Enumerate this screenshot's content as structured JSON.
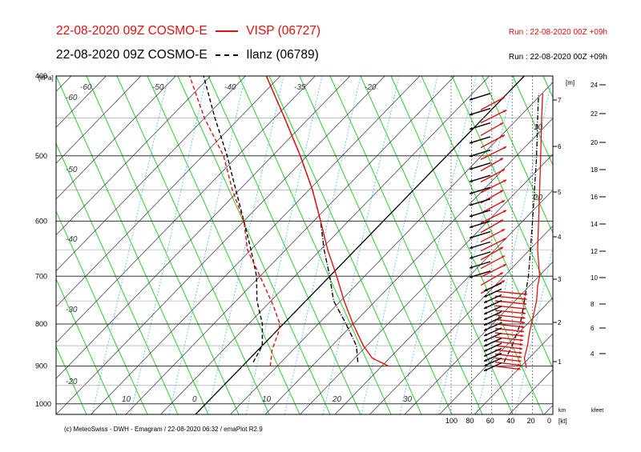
{
  "header": {
    "title1": "22-08-2020 09Z COSMO-E",
    "series1_label": "VISP (06727)",
    "title2": "22-08-2020 09Z COSMO-E",
    "series2_label": "Ilanz (06789)",
    "run1": "Run : 22-08-2020 00Z +09h",
    "run2": "Run : 22-08-2020 00Z +09h"
  },
  "footer": "(c) MeteoSwiss - DWH - Emagram / 22-08-2020 06:32 / emaPlot R2.9",
  "colors": {
    "visp": "#e01010",
    "ilanz": "#000000",
    "dry_adiabat": "#2ecc2e",
    "mixing_ratio": "#66c8ff",
    "isotherm": "#333333",
    "isobar": "#555555"
  },
  "chart_data": {
    "type": "line",
    "subtype": "emagram (skew-T log-P)",
    "pressure_axis": {
      "label": "[hPa]",
      "scale": "log",
      "ticks": [
        400,
        500,
        600,
        700,
        800,
        900,
        1000
      ],
      "range": [
        1030,
        400
      ]
    },
    "temperature_axis": {
      "ticks": [
        "-60",
        "-50",
        "-40",
        "-30",
        "-20",
        "-10",
        "0",
        "10",
        "20",
        "30"
      ],
      "top_labels": [
        "-60",
        "-50",
        "-40",
        "-35",
        "-20"
      ],
      "left_labels": [
        "-60",
        "-50",
        "-40",
        "-30",
        "-20"
      ],
      "bottom_labels": [
        "10",
        "0",
        "10",
        "20",
        "30"
      ]
    },
    "height_m_axis": {
      "label": "[m]",
      "ticks": [
        "1",
        "2",
        "3",
        "4",
        "5",
        "6",
        "7"
      ],
      "bottom_label": "km"
    },
    "height_kfeet_axis": {
      "ticks": [
        "4",
        "6",
        "8",
        "10",
        "12",
        "14",
        "16",
        "18",
        "20",
        "22",
        "24"
      ],
      "bottom_label": "kfeet"
    },
    "wind_axis": {
      "label": "[kt]",
      "ticks": [
        "100",
        "80",
        "60",
        "40",
        "20",
        "0"
      ]
    },
    "inner_labels": [
      "10",
      "20"
    ],
    "series": [
      {
        "name": "VISP (06727)",
        "temperature": {
          "pressure": [
            900,
            880,
            850,
            800,
            750,
            700,
            650,
            600,
            550,
            500,
            450,
            400
          ],
          "temp_c": [
            21,
            17.5,
            14.5,
            10,
            5.5,
            1,
            -4,
            -9,
            -14.5,
            -21,
            -28.5,
            -37
          ]
        },
        "dewpoint": {
          "pressure": [
            900,
            860,
            820,
            800,
            760,
            700,
            650,
            600,
            550,
            500,
            450,
            400
          ],
          "temp_c": [
            4,
            2,
            0.5,
            -0.5,
            -4,
            -10,
            -15.5,
            -20,
            -26,
            -32,
            -40,
            -48
          ]
        },
        "wind_speed_kt": {
          "pressure": [
            905,
            880,
            850,
            820,
            800,
            770,
            750,
            720,
            700,
            650,
            600,
            550,
            500,
            450,
            420
          ],
          "speed": [
            26,
            28,
            25,
            23,
            21,
            18,
            16,
            15,
            13,
            15,
            14,
            13,
            12,
            11,
            10
          ]
        }
      },
      {
        "name": "Ilanz (06789)",
        "temperature": {
          "pressure": [
            890,
            850,
            800,
            750,
            700,
            650,
            600,
            550,
            500,
            450,
            400
          ],
          "temp_c": [
            16,
            13.5,
            9,
            4,
            0,
            -4.5,
            -9,
            -14.5,
            -21,
            -28.5,
            -37
          ]
        },
        "dewpoint": {
          "pressure": [
            890,
            850,
            800,
            750,
            700,
            650,
            600,
            550,
            500,
            450,
            400
          ],
          "temp_c": [
            1,
            0,
            -3,
            -7,
            -10.5,
            -15,
            -20,
            -25.5,
            -31.5,
            -38.5,
            -46
          ]
        },
        "wind_speed_kt": {
          "pressure": [
            890,
            870,
            850,
            800,
            750,
            700,
            650,
            600,
            550,
            500,
            450,
            420
          ],
          "speed": [
            48,
            44,
            40,
            32,
            28,
            24,
            22,
            20,
            18,
            16,
            15,
            14
          ]
        }
      }
    ],
    "grid": true
  }
}
